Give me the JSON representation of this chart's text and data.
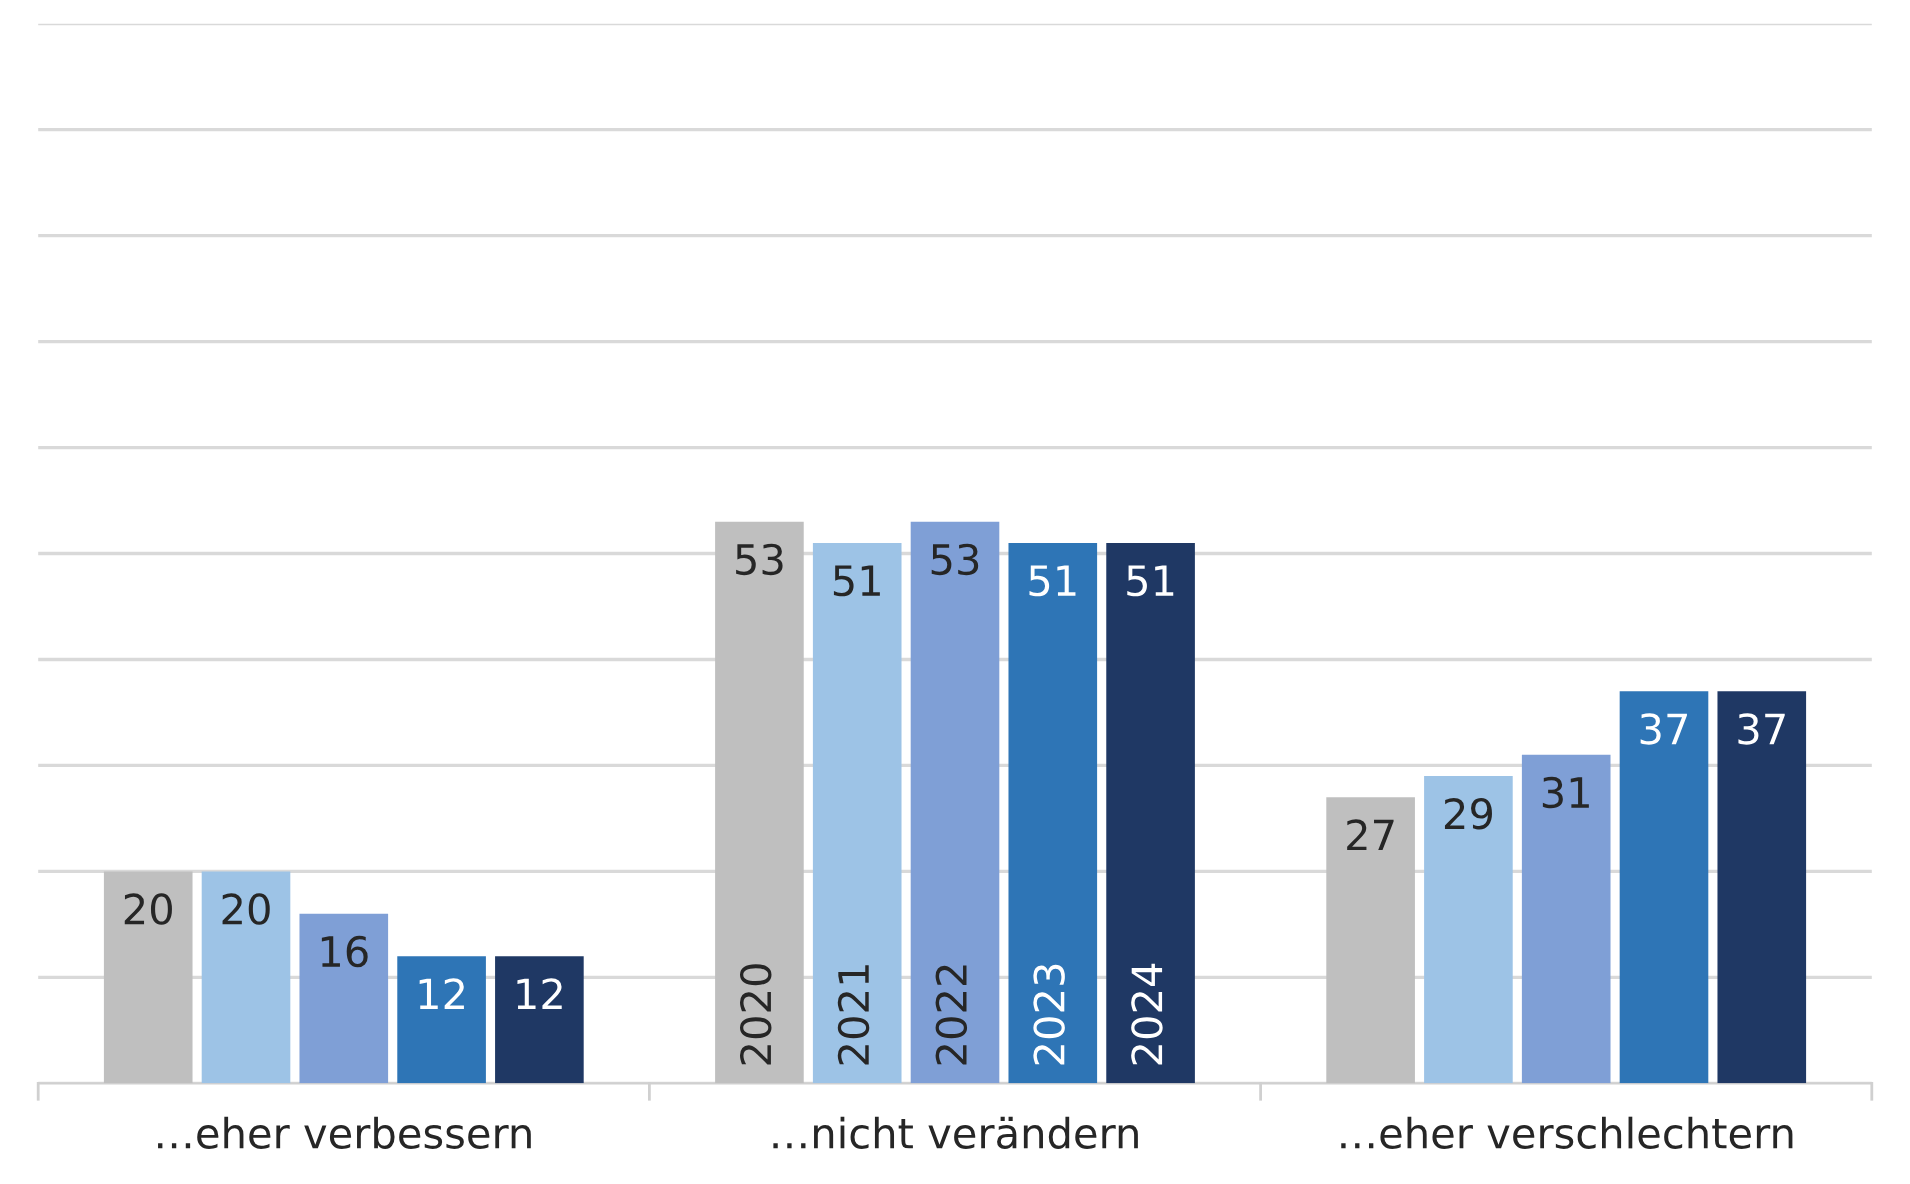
{
  "chart_data": {
    "type": "bar",
    "categories": [
      "…eher verbessern",
      "…nicht verändern",
      "…eher verschlechtern"
    ],
    "series": [
      {
        "name": "2020",
        "color": "#bfbfbf",
        "values": [
          20,
          53,
          27
        ]
      },
      {
        "name": "2021",
        "color": "#9dc3e6",
        "values": [
          20,
          51,
          29
        ]
      },
      {
        "name": "2022",
        "color": "#7f9fd6",
        "values": [
          16,
          53,
          31
        ]
      },
      {
        "name": "2023",
        "color": "#2e75b6",
        "values": [
          12,
          51,
          37
        ]
      },
      {
        "name": "2024",
        "color": "#1f3864",
        "values": [
          12,
          51,
          37
        ]
      }
    ],
    "ylim": [
      0,
      100
    ],
    "yticks": [
      {
        "value": 0,
        "label": null
      },
      {
        "value": 10,
        "label": null
      },
      {
        "value": 20,
        "label": null
      },
      {
        "value": 30,
        "label": null
      },
      {
        "value": 40,
        "label": null
      },
      {
        "value": 50,
        "label": null
      },
      {
        "value": 60,
        "label": null
      },
      {
        "value": 70,
        "label": null
      },
      {
        "value": 80,
        "label": null
      },
      {
        "value": 90,
        "label": null
      },
      {
        "value": 100,
        "label": null
      }
    ],
    "tick_labels": "x",
    "grid": "y",
    "data_labels": true,
    "legend": false
  }
}
